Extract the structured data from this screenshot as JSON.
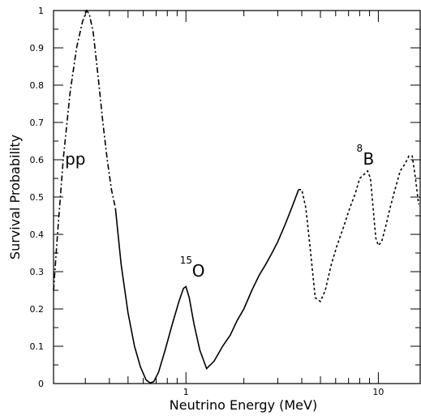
{
  "chart_data": {
    "type": "line",
    "title": "",
    "xlabel": "Neutrino Energy (MeV)",
    "ylabel": "Survival Probability",
    "xscale": "log",
    "xlim": [
      0.205,
      16.5
    ],
    "ylim": [
      0,
      1
    ],
    "grid": false,
    "x_tick_labels": [
      {
        "value": 1,
        "label": "1"
      },
      {
        "value": 10,
        "label": "10"
      }
    ],
    "y_tick_labels": [
      {
        "value": 0,
        "label": "0"
      },
      {
        "value": 0.1,
        "label": "0.1"
      },
      {
        "value": 0.2,
        "label": "0.2"
      },
      {
        "value": 0.3,
        "label": "0.3"
      },
      {
        "value": 0.4,
        "label": "0.4"
      },
      {
        "value": 0.5,
        "label": "0.5"
      },
      {
        "value": 0.6,
        "label": "0.6"
      },
      {
        "value": 0.7,
        "label": "0.7"
      },
      {
        "value": 0.8,
        "label": "0.8"
      },
      {
        "value": 0.9,
        "label": "0.9"
      },
      {
        "value": 1,
        "label": "1"
      }
    ],
    "series": [
      {
        "id": "pp",
        "dash": "dash-dot",
        "x": [
          0.205,
          0.215,
          0.23,
          0.25,
          0.27,
          0.29,
          0.305,
          0.315,
          0.33,
          0.35,
          0.37,
          0.39,
          0.41,
          0.43
        ],
        "y": [
          0.25,
          0.4,
          0.6,
          0.78,
          0.9,
          0.97,
          1.0,
          0.99,
          0.94,
          0.82,
          0.7,
          0.6,
          0.52,
          0.47
        ]
      },
      {
        "id": "15O",
        "dash": "solid",
        "x": [
          0.43,
          0.46,
          0.5,
          0.54,
          0.58,
          0.62,
          0.65,
          0.68,
          0.72,
          0.78,
          0.85,
          0.92,
          0.97,
          1.0,
          1.04,
          1.1,
          1.18,
          1.28,
          1.4,
          1.55,
          1.7,
          1.85,
          2.0,
          2.2,
          2.4,
          2.6,
          2.8,
          3.0,
          3.3,
          3.6,
          3.85
        ],
        "y": [
          0.47,
          0.32,
          0.19,
          0.1,
          0.045,
          0.01,
          0.002,
          0.005,
          0.03,
          0.09,
          0.16,
          0.22,
          0.255,
          0.26,
          0.23,
          0.16,
          0.09,
          0.04,
          0.06,
          0.1,
          0.13,
          0.17,
          0.2,
          0.25,
          0.29,
          0.32,
          0.35,
          0.38,
          0.43,
          0.48,
          0.52
        ]
      },
      {
        "id": "8B",
        "dash": "dotted",
        "x": [
          3.85,
          4.0,
          4.2,
          4.45,
          4.7,
          5.0,
          5.3,
          5.7,
          6.1,
          6.6,
          7.1,
          7.6,
          8.0,
          8.4,
          8.8,
          9.1,
          9.4,
          9.7,
          10.0,
          10.4,
          10.9,
          11.5,
          12.2,
          13.0,
          13.8,
          14.4,
          15.0,
          15.6,
          16.2
        ],
        "y": [
          0.52,
          0.52,
          0.47,
          0.35,
          0.23,
          0.22,
          0.25,
          0.32,
          0.37,
          0.42,
          0.47,
          0.51,
          0.55,
          0.56,
          0.57,
          0.55,
          0.47,
          0.39,
          0.37,
          0.38,
          0.42,
          0.47,
          0.52,
          0.57,
          0.59,
          0.61,
          0.61,
          0.55,
          0.48
        ]
      }
    ],
    "annotations": [
      {
        "id": "pp",
        "text": "pp",
        "sup": "",
        "x": 0.235,
        "y": 0.6
      },
      {
        "id": "15O",
        "text": "O",
        "sup": "15",
        "x": 0.93,
        "y": 0.3
      },
      {
        "id": "8B",
        "text": "B",
        "sup": "8",
        "x": 7.7,
        "y": 0.6
      }
    ]
  }
}
